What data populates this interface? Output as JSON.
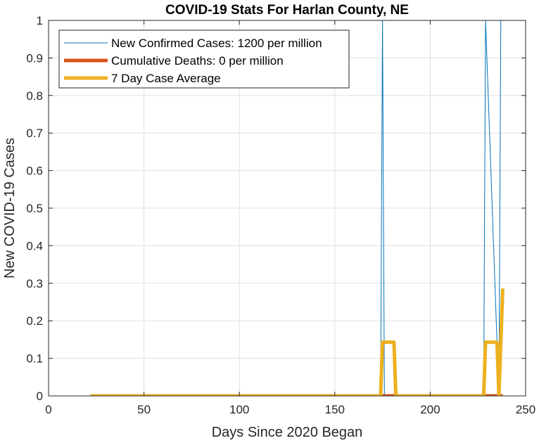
{
  "chart_data": {
    "type": "line",
    "title": "COVID-19 Stats For Harlan County, NE",
    "xlabel": "Days Since 2020 Began",
    "ylabel": "New COVID-19 Cases",
    "xlim": [
      0,
      250
    ],
    "ylim": [
      0,
      1
    ],
    "xticks": [
      0,
      50,
      100,
      150,
      200,
      250
    ],
    "yticks": [
      0,
      0.1,
      0.2,
      0.3,
      0.4,
      0.5,
      0.6,
      0.7,
      0.8,
      0.9,
      1
    ],
    "grid": true,
    "legend_position": "top-left",
    "series": [
      {
        "name": "New Confirmed Cases: 1200 per million",
        "color": "#0072BD",
        "style": "thin",
        "x": [
          22,
          174,
          175,
          176,
          228,
          229,
          236,
          237,
          238
        ],
        "y": [
          0,
          0,
          1,
          0,
          0,
          1,
          0,
          1,
          1
        ]
      },
      {
        "name": "Cumulative Deaths: 0 per million",
        "color": "#D95319",
        "style": "thick",
        "x": [
          22,
          238
        ],
        "y": [
          0,
          0
        ]
      },
      {
        "name": "7 Day Case Average",
        "color": "#EDB120",
        "style": "thick",
        "x": [
          22,
          174,
          175,
          181,
          182,
          228,
          229,
          235,
          236,
          237,
          238
        ],
        "y": [
          0,
          0,
          0.143,
          0.143,
          0,
          0,
          0.143,
          0.143,
          0,
          0.143,
          0.286
        ]
      }
    ]
  }
}
